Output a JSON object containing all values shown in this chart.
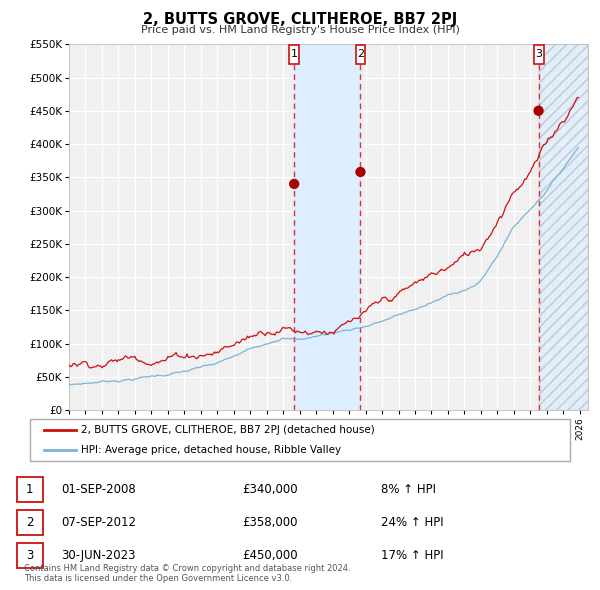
{
  "title": "2, BUTTS GROVE, CLITHEROE, BB7 2PJ",
  "subtitle": "Price paid vs. HM Land Registry's House Price Index (HPI)",
  "ylim": [
    0,
    550000
  ],
  "xlim_start": 1995.0,
  "xlim_end": 2026.5,
  "yticks": [
    0,
    50000,
    100000,
    150000,
    200000,
    250000,
    300000,
    350000,
    400000,
    450000,
    500000,
    550000
  ],
  "ytick_labels": [
    "£0",
    "£50K",
    "£100K",
    "£150K",
    "£200K",
    "£250K",
    "£300K",
    "£350K",
    "£400K",
    "£450K",
    "£500K",
    "£550K"
  ],
  "hpi_color": "#7ab4d8",
  "price_color": "#cc1111",
  "sale_color": "#aa0000",
  "vline_color": "#dd3333",
  "shade_color": "#dceeff",
  "sale_dates": [
    2008.667,
    2012.69,
    2023.5
  ],
  "sale_prices": [
    340000,
    358000,
    450000
  ],
  "sale_labels": [
    "1",
    "2",
    "3"
  ],
  "legend_label_red": "2, BUTTS GROVE, CLITHEROE, BB7 2PJ (detached house)",
  "legend_label_blue": "HPI: Average price, detached house, Ribble Valley",
  "table_entries": [
    {
      "num": "1",
      "date": "01-SEP-2008",
      "price": "£340,000",
      "change": "8% ↑ HPI"
    },
    {
      "num": "2",
      "date": "07-SEP-2012",
      "price": "£358,000",
      "change": "24% ↑ HPI"
    },
    {
      "num": "3",
      "date": "30-JUN-2023",
      "price": "£450,000",
      "change": "17% ↑ HPI"
    }
  ],
  "footer": "Contains HM Land Registry data © Crown copyright and database right 2024.\nThis data is licensed under the Open Government Licence v3.0.",
  "background_chart": "#f0f0f0",
  "grid_color": "#ffffff",
  "box_color": "#cc1111"
}
